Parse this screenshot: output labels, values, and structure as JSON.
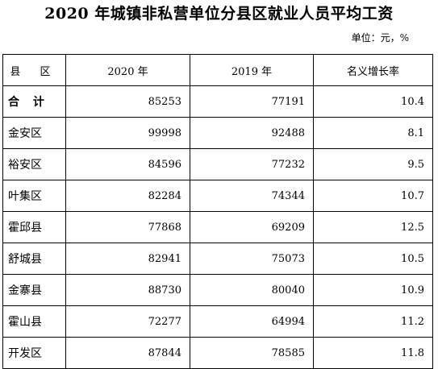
{
  "title": "2020 年城镇非私营单位分县区就业人员平均工资",
  "unit_label": "单位：元，%",
  "table": {
    "headers": [
      "县 区",
      "2020 年",
      "2019 年",
      "名义增长率"
    ],
    "rows": [
      {
        "region": "合 计",
        "y2020": "85253",
        "y2019": "77191",
        "growth": "10.4"
      },
      {
        "region": "金安区",
        "y2020": "99998",
        "y2019": "92488",
        "growth": "8.1"
      },
      {
        "region": "裕安区",
        "y2020": "84596",
        "y2019": "77232",
        "growth": "9.5"
      },
      {
        "region": "叶集区",
        "y2020": "82284",
        "y2019": "74344",
        "growth": "10.7"
      },
      {
        "region": "霍邱县",
        "y2020": "77868",
        "y2019": "69209",
        "growth": "12.5"
      },
      {
        "region": "舒城县",
        "y2020": "82941",
        "y2019": "75073",
        "growth": "10.5"
      },
      {
        "region": "金寨县",
        "y2020": "88730",
        "y2019": "80040",
        "growth": "10.9"
      },
      {
        "region": "霍山县",
        "y2020": "72277",
        "y2019": "64994",
        "growth": "11.2"
      },
      {
        "region": "开发区",
        "y2020": "87844",
        "y2019": "78585",
        "growth": "11.8"
      }
    ]
  }
}
